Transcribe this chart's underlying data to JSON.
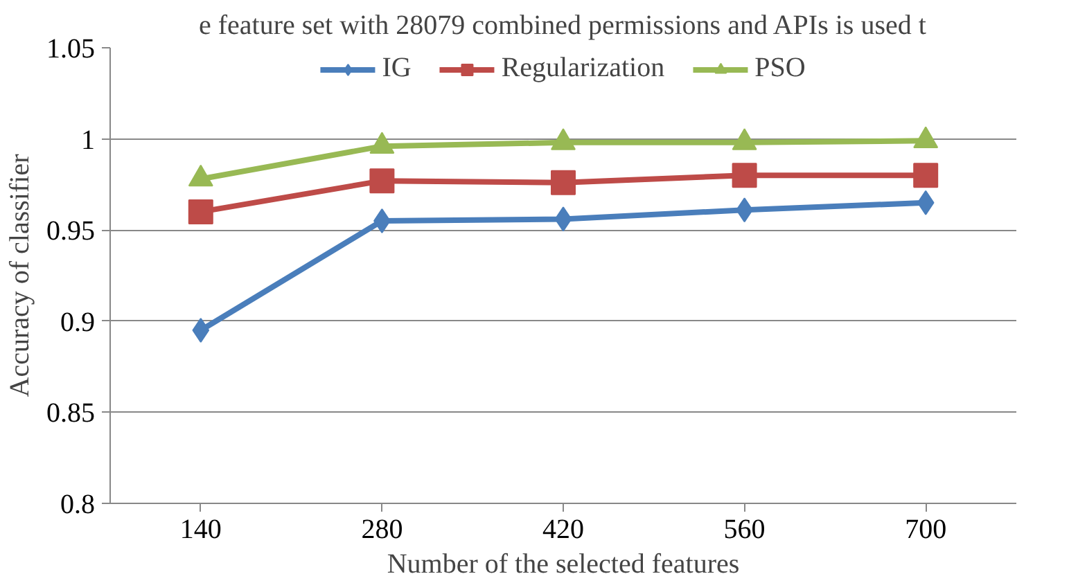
{
  "chart_data": {
    "type": "line",
    "categories": [
      "140",
      "280",
      "420",
      "560",
      "700"
    ],
    "series": [
      {
        "name": "IG",
        "color": "#4a7ebb",
        "marker": "diamond",
        "values": [
          0.895,
          0.955,
          0.956,
          0.961,
          0.965
        ]
      },
      {
        "name": "Regularization",
        "color": "#be4b48",
        "marker": "square",
        "values": [
          0.96,
          0.977,
          0.976,
          0.98,
          0.98
        ]
      },
      {
        "name": "PSO",
        "color": "#98b954",
        "marker": "triangle",
        "values": [
          0.978,
          0.996,
          0.998,
          0.998,
          0.999
        ]
      }
    ],
    "xlabel": "Number of the selected features",
    "ylabel": "Accuracy of classifier",
    "ylim": [
      0.8,
      1.05
    ],
    "yticks": [
      0.8,
      0.85,
      0.9,
      0.95,
      1,
      1.05
    ],
    "grid": "y",
    "legend": "top",
    "line_style": "solid",
    "annotations": [
      "e feature set with 28079 combined permissions and APIs is used t"
    ]
  }
}
